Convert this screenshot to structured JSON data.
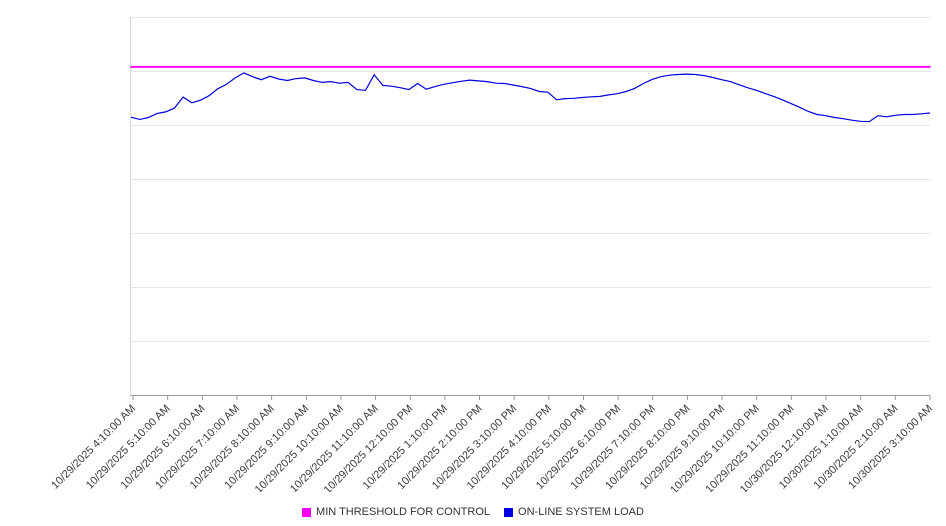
{
  "legend": [
    {
      "label": "MIN THRESHOLD FOR CONTROL",
      "color": "#ff00ff"
    },
    {
      "label": "ON-LINE SYSTEM LOAD",
      "color": "#0000e0"
    }
  ],
  "chart_data": {
    "type": "line",
    "title": "",
    "xlabel": "",
    "ylabel": "",
    "grid": true,
    "grid_divisions": 7,
    "legend_position": "bottom-center",
    "y_axis_labels_visible": false,
    "y_unit": "unlabeled (values estimated as percent of plot height)",
    "ylim": [
      0,
      100
    ],
    "categories": [
      "10/29/2025 4:10:00 AM",
      "10/29/2025 5:10:00 AM",
      "10/29/2025 6:10:00 AM",
      "10/29/2025 7:10:00 AM",
      "10/29/2025 8:10:00 AM",
      "10/29/2025 9:10:00 AM",
      "10/29/2025 10:10:00 AM",
      "10/29/2025 11:10:00 AM",
      "10/29/2025 12:10:00 PM",
      "10/29/2025 1:10:00 PM",
      "10/29/2025 2:10:00 PM",
      "10/29/2025 3:10:00 PM",
      "10/29/2025 4:10:00 PM",
      "10/29/2025 5:10:00 PM",
      "10/29/2025 6:10:00 PM",
      "10/29/2025 7:10:00 PM",
      "10/29/2025 8:10:00 PM",
      "10/29/2025 9:10:00 PM",
      "10/29/2025 10:10:00 PM",
      "10/29/2025 11:10:00 PM",
      "10/30/2025 12:10:00 AM",
      "10/30/2025 1:10:00 AM",
      "10/30/2025 2:10:00 AM",
      "10/30/2025 3:10:00 AM"
    ],
    "series": [
      {
        "name": "MIN THRESHOLD FOR CONTROL",
        "color": "#ff00ff",
        "type": "constant",
        "value": 86.8
      },
      {
        "name": "ON-LINE SYSTEM LOAD",
        "color": "#0000e0",
        "points_per_hour": 4,
        "values": [
          73.5,
          72.9,
          73.4,
          74.5,
          74.9,
          75.9,
          78.8,
          77.3,
          78.0,
          79.2,
          81.0,
          82.2,
          83.9,
          85.2,
          84.2,
          83.4,
          84.3,
          83.6,
          83.2,
          83.7,
          83.9,
          83.2,
          82.7,
          82.9,
          82.5,
          82.7,
          80.8,
          80.6,
          84.7,
          81.9,
          81.7,
          81.3,
          80.8,
          82.4,
          80.9,
          81.6,
          82.2,
          82.6,
          83.0,
          83.3,
          83.1,
          82.9,
          82.5,
          82.4,
          82.0,
          81.6,
          81.1,
          80.3,
          80.1,
          78.1,
          78.4,
          78.5,
          78.7,
          78.9,
          79.0,
          79.4,
          79.7,
          80.3,
          81.1,
          82.4,
          83.5,
          84.2,
          84.6,
          84.8,
          84.9,
          84.8,
          84.5,
          84.0,
          83.4,
          82.9,
          82.1,
          81.3,
          80.6,
          79.8,
          79.0,
          78.1,
          77.1,
          76.1,
          75.0,
          74.2,
          73.9,
          73.4,
          73.1,
          72.7,
          72.4,
          72.3,
          73.9,
          73.6,
          74.0,
          74.2,
          74.2,
          74.4,
          74.6
        ]
      }
    ]
  }
}
